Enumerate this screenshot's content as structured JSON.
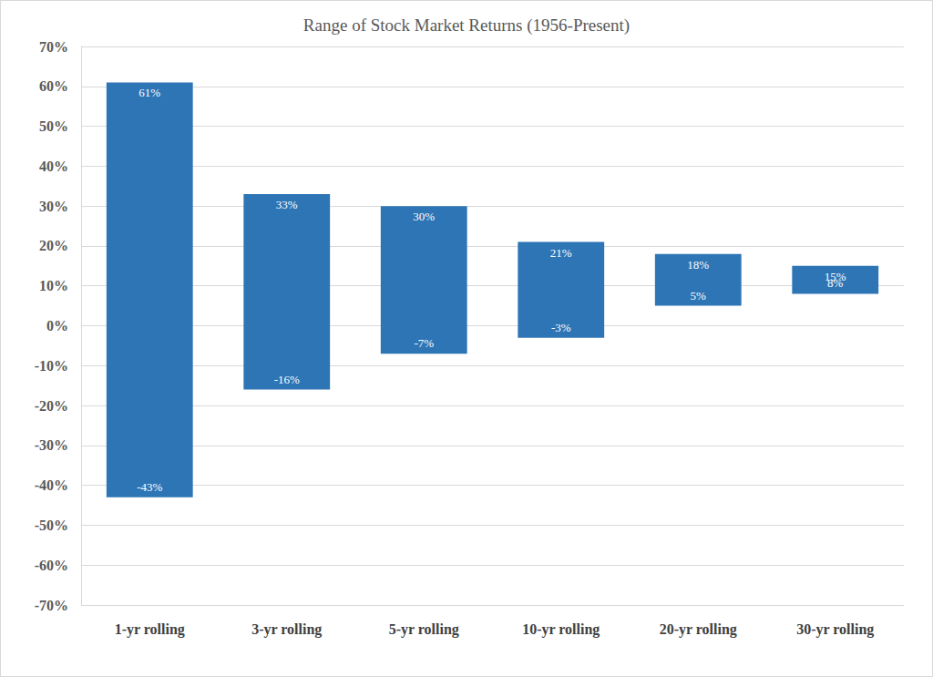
{
  "chart_data": {
    "type": "bar",
    "title": "Range of Stock Market Returns (1956-Present)",
    "categories": [
      "1-yr rolling",
      "3-yr rolling",
      "5-yr rolling",
      "10-yr rolling",
      "20-yr rolling",
      "30-yr rolling"
    ],
    "values": [
      [
        -43,
        61
      ],
      [
        -16,
        33
      ],
      [
        -7,
        30
      ],
      [
        -3,
        21
      ],
      [
        5,
        18
      ],
      [
        8,
        15
      ]
    ],
    "value_labels": [
      [
        "-43%",
        "61%"
      ],
      [
        "-16%",
        "33%"
      ],
      [
        "-7%",
        "30%"
      ],
      [
        "-3%",
        "21%"
      ],
      [
        "5%",
        "18%"
      ],
      [
        "8%",
        "15%"
      ]
    ],
    "color": "#2e75b6",
    "ylim": [
      -70,
      70
    ],
    "yticks": [
      {
        "value": -70,
        "label": "-70%"
      },
      {
        "value": -60,
        "label": "-60%"
      },
      {
        "value": -50,
        "label": "-50%"
      },
      {
        "value": -40,
        "label": "-40%"
      },
      {
        "value": -30,
        "label": "-30%"
      },
      {
        "value": -20,
        "label": "-20%"
      },
      {
        "value": -10,
        "label": "-10%"
      },
      {
        "value": 0,
        "label": "0%"
      },
      {
        "value": 10,
        "label": "10%"
      },
      {
        "value": 20,
        "label": "20%"
      },
      {
        "value": 30,
        "label": "30%"
      },
      {
        "value": 40,
        "label": "40%"
      },
      {
        "value": 50,
        "label": "50%"
      },
      {
        "value": 60,
        "label": "60%"
      },
      {
        "value": 70,
        "label": "70%"
      }
    ],
    "grid": true,
    "data_labels": true
  }
}
